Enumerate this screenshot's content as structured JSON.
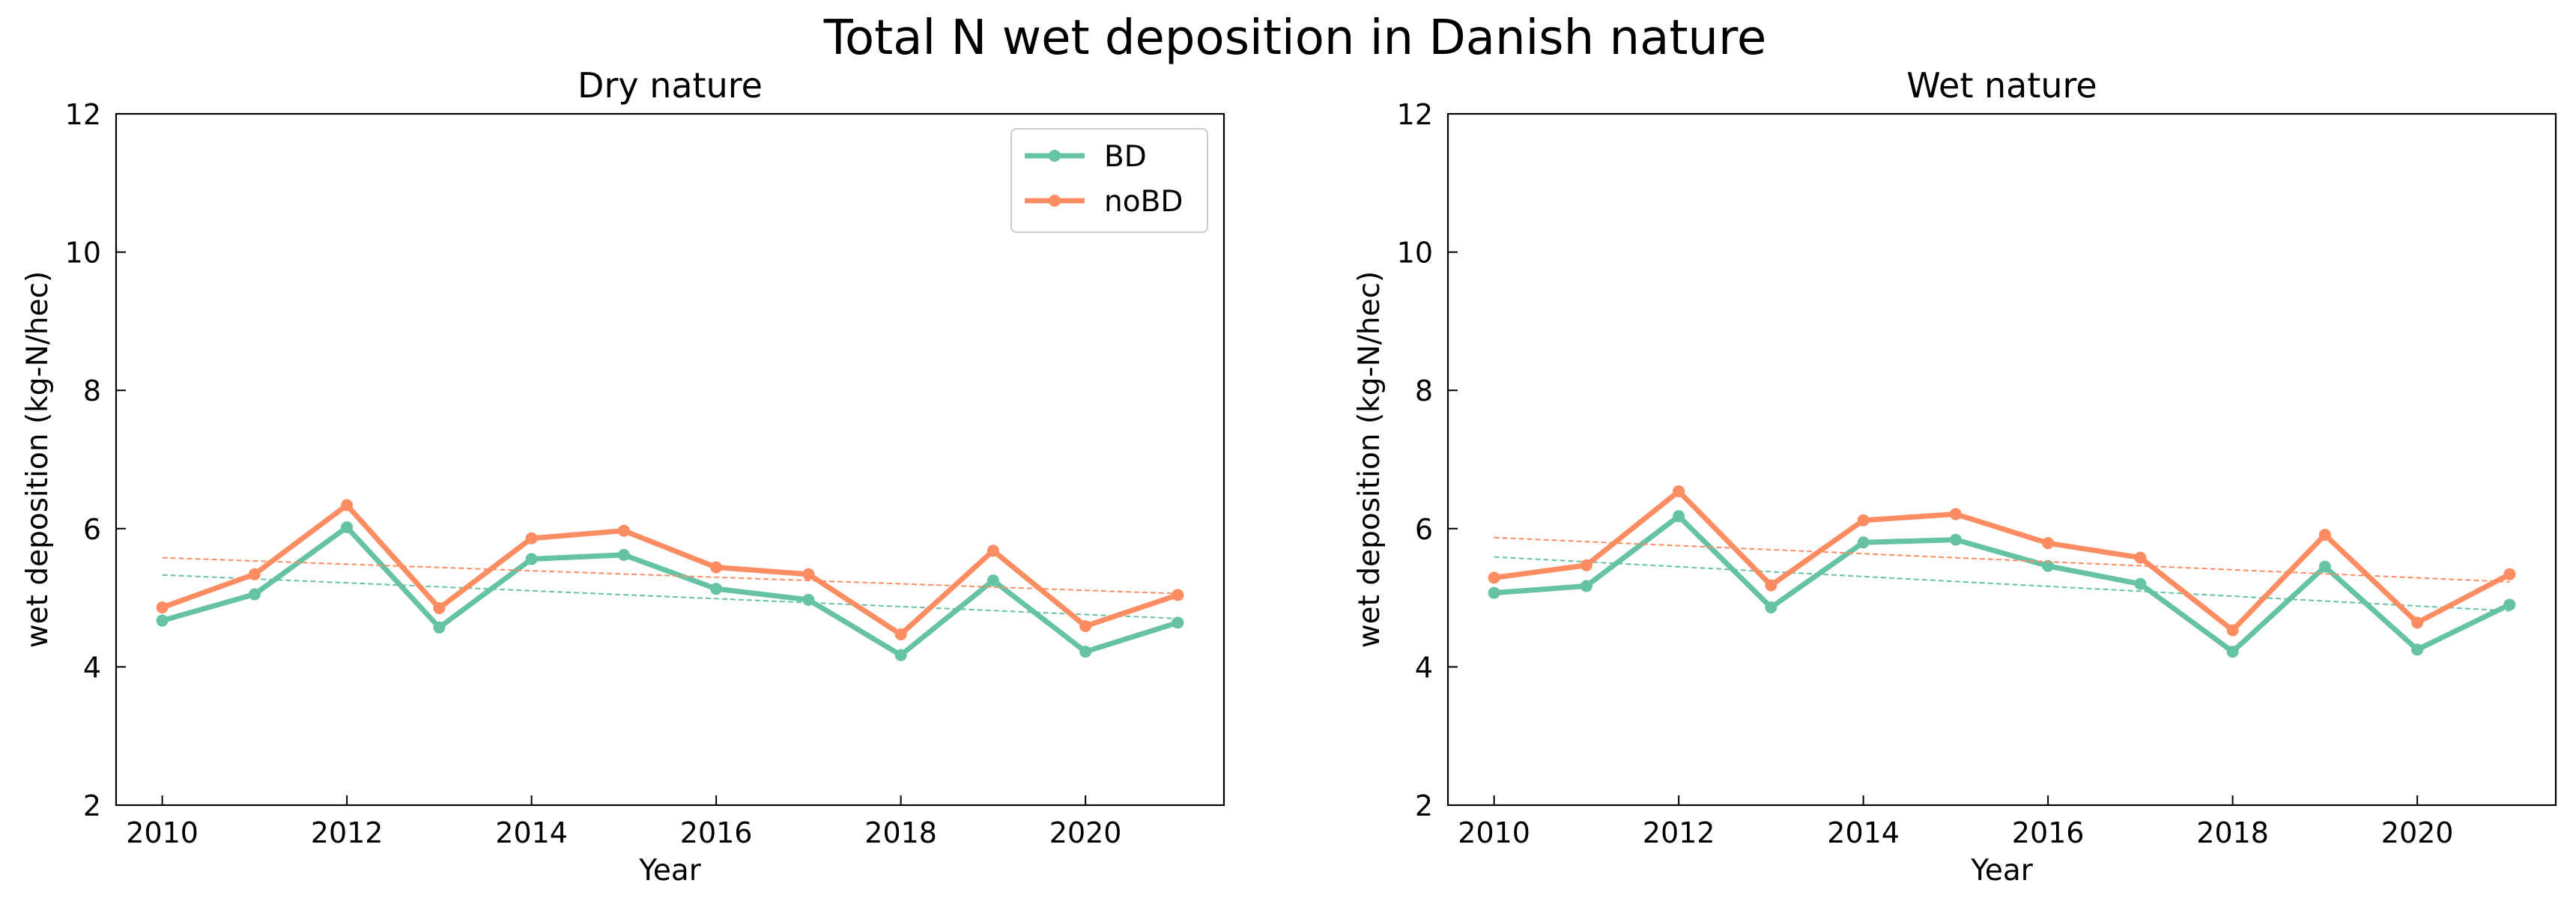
{
  "figure": {
    "suptitle": "Total N wet deposition in Danish nature"
  },
  "colors": {
    "BD": "#66c2a5",
    "noBD": "#fc8d62"
  },
  "chart_data": [
    {
      "type": "line",
      "title": "Dry nature",
      "xlabel": "Year",
      "ylabel": "wet deposition (kg-N/hec)",
      "xlim": [
        2009.5,
        2021.5
      ],
      "ylim": [
        2,
        12
      ],
      "xticks": [
        2010,
        2012,
        2014,
        2016,
        2018,
        2020
      ],
      "yticks": [
        2,
        4,
        6,
        8,
        10,
        12
      ],
      "grid": false,
      "legend": "top-right",
      "x": [
        2010,
        2011,
        2012,
        2013,
        2014,
        2015,
        2016,
        2017,
        2018,
        2019,
        2020,
        2021
      ],
      "series": [
        {
          "name": "BD",
          "values": [
            4.67,
            5.05,
            6.02,
            4.57,
            5.56,
            5.62,
            5.13,
            4.97,
            4.17,
            5.25,
            4.22,
            4.64
          ],
          "trend": [
            5.33,
            4.7
          ]
        },
        {
          "name": "noBD",
          "values": [
            4.86,
            5.34,
            6.34,
            4.85,
            5.86,
            5.97,
            5.44,
            5.34,
            4.47,
            5.68,
            4.59,
            5.04
          ],
          "trend": [
            5.58,
            5.06
          ]
        }
      ]
    },
    {
      "type": "line",
      "title": "Wet nature",
      "xlabel": "Year",
      "ylabel": "wet deposition (kg-N/hec)",
      "xlim": [
        2009.5,
        2021.5
      ],
      "ylim": [
        2,
        12
      ],
      "xticks": [
        2010,
        2012,
        2014,
        2016,
        2018,
        2020
      ],
      "yticks": [
        2,
        4,
        6,
        8,
        10,
        12
      ],
      "grid": false,
      "legend": "none",
      "x": [
        2010,
        2011,
        2012,
        2013,
        2014,
        2015,
        2016,
        2017,
        2018,
        2019,
        2020,
        2021
      ],
      "series": [
        {
          "name": "BD",
          "values": [
            5.07,
            5.17,
            6.18,
            4.86,
            5.8,
            5.84,
            5.46,
            5.2,
            4.22,
            5.45,
            4.25,
            4.9
          ],
          "trend": [
            5.59,
            4.81
          ]
        },
        {
          "name": "noBD",
          "values": [
            5.29,
            5.47,
            6.54,
            5.18,
            6.12,
            6.21,
            5.79,
            5.58,
            4.53,
            5.91,
            4.64,
            5.34
          ],
          "trend": [
            5.87,
            5.23
          ]
        }
      ]
    }
  ]
}
